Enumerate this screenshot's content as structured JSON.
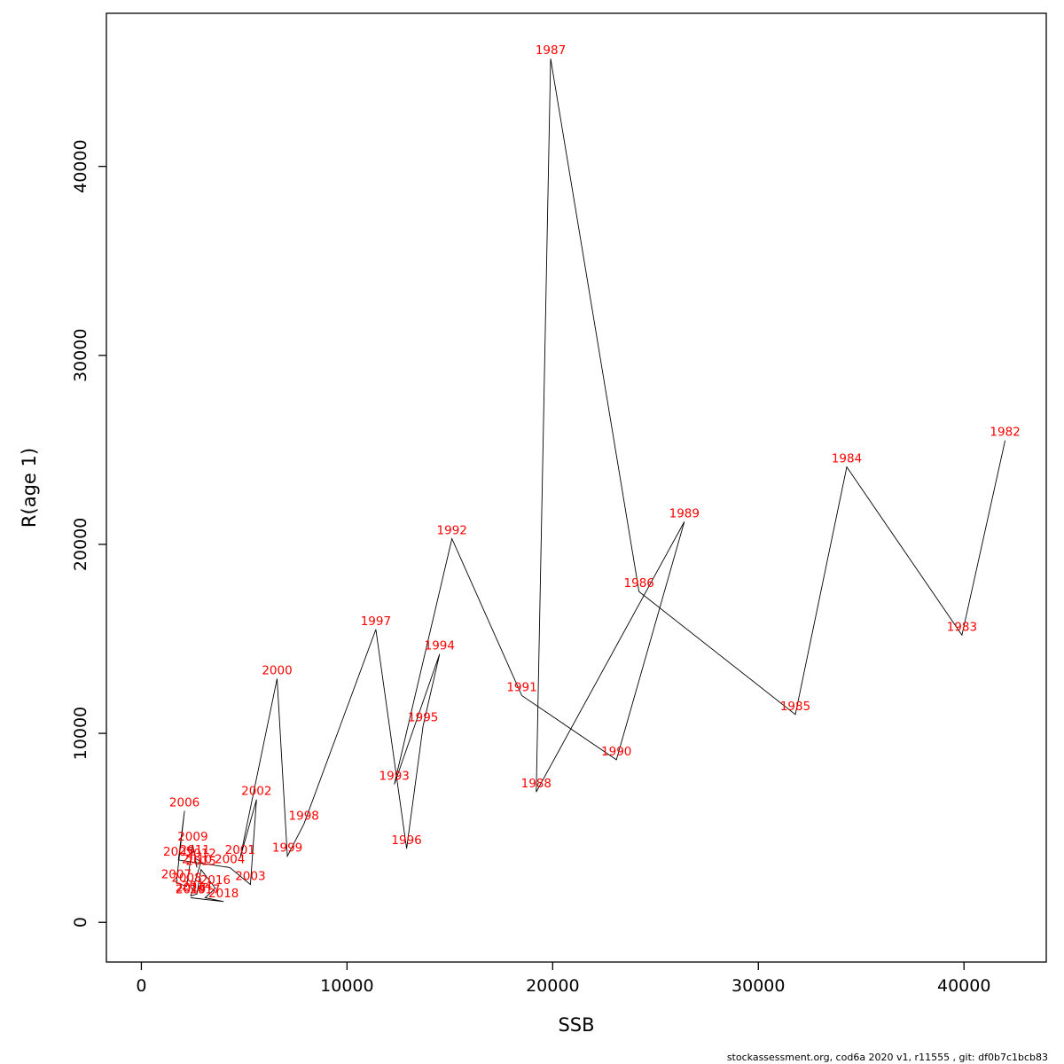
{
  "footer": {
    "text": "stockassessment.org, cod6a  2020  v1, r11555 , git: df0b7c1bcb83"
  },
  "chart_data": {
    "type": "scatter",
    "title": "",
    "xlabel": "SSB",
    "ylabel": "R(age 1)",
    "xlim": [
      -1700,
      44000
    ],
    "ylim": [
      -2100,
      48100
    ],
    "x_ticks": [
      0,
      10000,
      20000,
      30000,
      40000
    ],
    "y_ticks": [
      0,
      10000,
      20000,
      30000,
      40000
    ],
    "grid": false,
    "legend": "none",
    "line_color": "#000000",
    "label_color": "#ff0000",
    "points": [
      {
        "year": "1982",
        "ssb": 42000,
        "r": 25500
      },
      {
        "year": "1983",
        "ssb": 39900,
        "r": 15200
      },
      {
        "year": "1984",
        "ssb": 34300,
        "r": 24100
      },
      {
        "year": "1985",
        "ssb": 31800,
        "r": 11000
      },
      {
        "year": "1986",
        "ssb": 24200,
        "r": 17500
      },
      {
        "year": "1987",
        "ssb": 19900,
        "r": 45700
      },
      {
        "year": "1988",
        "ssb": 19200,
        "r": 6900
      },
      {
        "year": "1989",
        "ssb": 26400,
        "r": 21200
      },
      {
        "year": "1990",
        "ssb": 23100,
        "r": 8600
      },
      {
        "year": "1991",
        "ssb": 18500,
        "r": 12000
      },
      {
        "year": "1992",
        "ssb": 15100,
        "r": 20300
      },
      {
        "year": "1993",
        "ssb": 12300,
        "r": 7300
      },
      {
        "year": "1994",
        "ssb": 14500,
        "r": 14200
      },
      {
        "year": "1995",
        "ssb": 13700,
        "r": 10400
      },
      {
        "year": "1996",
        "ssb": 12900,
        "r": 3900
      },
      {
        "year": "1997",
        "ssb": 11400,
        "r": 15500
      },
      {
        "year": "1998",
        "ssb": 7900,
        "r": 5200
      },
      {
        "year": "1999",
        "ssb": 7100,
        "r": 3500
      },
      {
        "year": "2000",
        "ssb": 6600,
        "r": 12900
      },
      {
        "year": "2001",
        "ssb": 4800,
        "r": 3400
      },
      {
        "year": "2002",
        "ssb": 5600,
        "r": 6500
      },
      {
        "year": "2003",
        "ssb": 5300,
        "r": 2000
      },
      {
        "year": "2004",
        "ssb": 4300,
        "r": 2900
      },
      {
        "year": "2005",
        "ssb": 1800,
        "r": 3300
      },
      {
        "year": "2006",
        "ssb": 2100,
        "r": 5900
      },
      {
        "year": "2007",
        "ssb": 1700,
        "r": 2100
      },
      {
        "year": "2008",
        "ssb": 2200,
        "r": 1900
      },
      {
        "year": "2009",
        "ssb": 2500,
        "r": 4100
      },
      {
        "year": "2010",
        "ssb": 2700,
        "r": 2900
      },
      {
        "year": "2011",
        "ssb": 2600,
        "r": 3400
      },
      {
        "year": "2012",
        "ssb": 2900,
        "r": 3200
      },
      {
        "year": "2013",
        "ssb": 2400,
        "r": 1400
      },
      {
        "year": "2014",
        "ssb": 2700,
        "r": 1500
      },
      {
        "year": "2015",
        "ssb": 2900,
        "r": 2800
      },
      {
        "year": "2016",
        "ssb": 3600,
        "r": 1800
      },
      {
        "year": "2017",
        "ssb": 3100,
        "r": 1300
      },
      {
        "year": "2018",
        "ssb": 4000,
        "r": 1100
      },
      {
        "year": "2019",
        "ssb": 2400,
        "r": 1300
      }
    ]
  }
}
